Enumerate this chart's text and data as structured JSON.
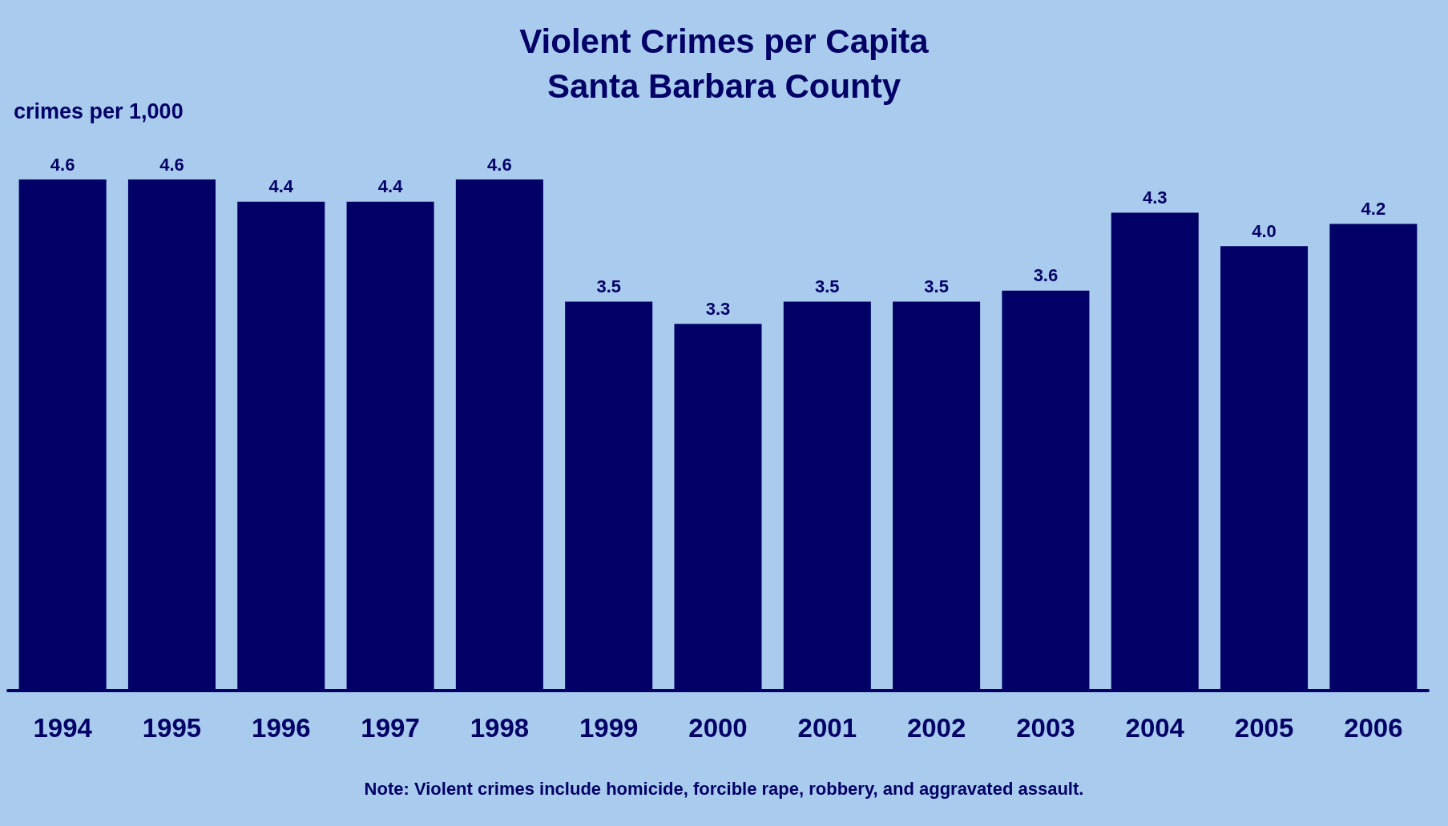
{
  "chart_data": {
    "type": "bar",
    "title": "Violent Crimes per Capita\nSanta Barbara County",
    "ylabel": "crimes per 1,000",
    "categories": [
      "1994",
      "1995",
      "1996",
      "1997",
      "1998",
      "1999",
      "2000",
      "2001",
      "2002",
      "2003",
      "2004",
      "2005",
      "2006"
    ],
    "values": [
      4.6,
      4.6,
      4.4,
      4.4,
      4.6,
      3.5,
      3.3,
      3.5,
      3.5,
      3.6,
      4.3,
      4.0,
      4.2
    ],
    "value_labels": [
      "4.6",
      "4.6",
      "4.4",
      "4.4",
      "4.6",
      "3.5",
      "3.3",
      "3.5",
      "3.5",
      "3.6",
      "4.3",
      "4.0",
      "4.2"
    ],
    "color": "#000066",
    "annotations": [
      "Note: Violent crimes include homicide, forcible rape, robbery, and aggravated assault."
    ]
  }
}
